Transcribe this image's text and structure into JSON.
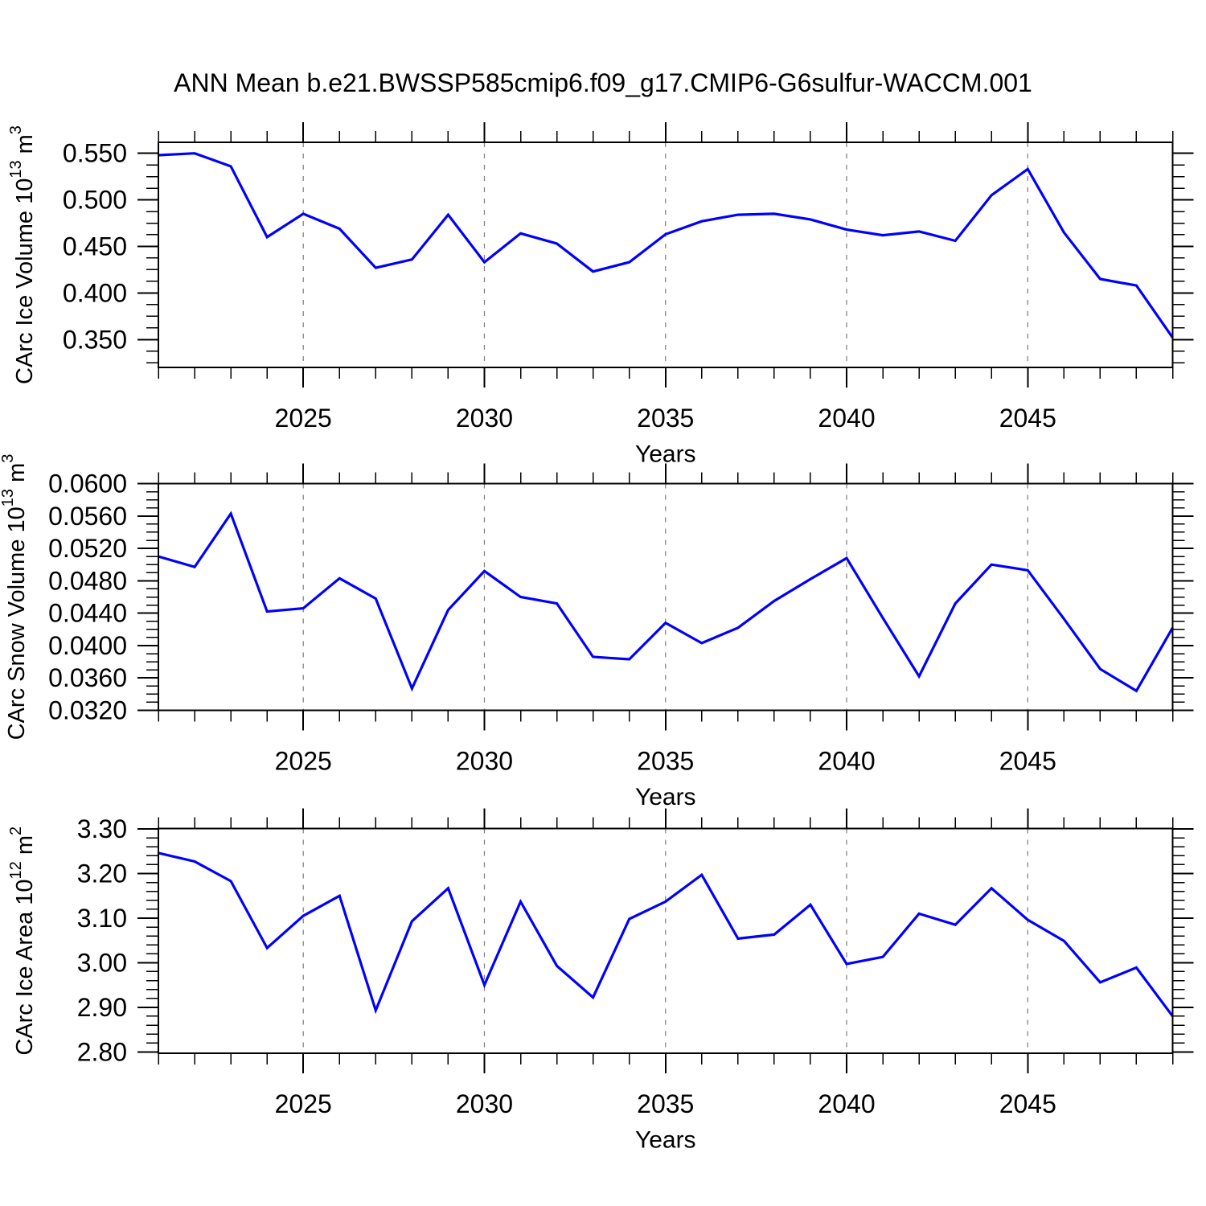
{
  "title": "ANN Mean b.e21.BWSSP585cmip6.f09_g17.CMIP6-G6sulfur-WACCM.001",
  "xlabel": "Years",
  "colors": {
    "line": "#0000ff",
    "grid": "#848484",
    "frame": "#000000",
    "text": "#000000",
    "background": "#ffffff"
  },
  "x_axis": {
    "start": 2021,
    "end": 2049,
    "major_ticks": [
      2025,
      2030,
      2035,
      2040,
      2045
    ],
    "tick_labels": [
      "2025",
      "2030",
      "2035",
      "2040",
      "2045"
    ],
    "minor_step_years": 1,
    "gridlines": "dashed-at-major-ticks"
  },
  "years": [
    2021,
    2022,
    2023,
    2024,
    2025,
    2026,
    2027,
    2028,
    2029,
    2030,
    2031,
    2032,
    2033,
    2034,
    2035,
    2036,
    2037,
    2038,
    2039,
    2040,
    2041,
    2042,
    2043,
    2044,
    2045,
    2046,
    2047,
    2048,
    2049
  ],
  "chart_data": [
    {
      "type": "line",
      "id": "carc-ice-volume",
      "ylabel_text": "CArc Ice Volume 10^13 m^3",
      "ylabel_segments": [
        {
          "text": "CArc Ice Volume 10",
          "sup": false
        },
        {
          "text": "13",
          "sup": true
        },
        {
          "text": " m",
          "sup": false
        },
        {
          "text": "3",
          "sup": true
        }
      ],
      "ylim": [
        0.32,
        0.5618
      ],
      "yticks": [
        0.55,
        0.5,
        0.45,
        0.4,
        0.35
      ],
      "ytick_labels": [
        "0.550",
        "0.500",
        "0.450",
        "0.400",
        "0.350"
      ],
      "y_minor_step": 0.0125,
      "values": [
        0.548,
        0.55,
        0.536,
        0.46,
        0.485,
        0.469,
        0.427,
        0.436,
        0.484,
        0.433,
        0.464,
        0.453,
        0.423,
        0.433,
        0.463,
        0.477,
        0.484,
        0.485,
        0.479,
        0.468,
        0.462,
        0.466,
        0.456,
        0.505,
        0.533,
        0.465,
        0.415,
        0.408,
        0.352
      ]
    },
    {
      "type": "line",
      "id": "carc-snow-volume",
      "ylabel_text": "CArc Snow Volume 10^13 m^3",
      "ylabel_segments": [
        {
          "text": "CArc Snow Volume 10",
          "sup": false
        },
        {
          "text": "13",
          "sup": true
        },
        {
          "text": " m",
          "sup": false
        },
        {
          "text": "3",
          "sup": true
        }
      ],
      "ylim": [
        0.032,
        0.06
      ],
      "yticks": [
        0.06,
        0.056,
        0.052,
        0.048,
        0.044,
        0.04,
        0.036,
        0.032
      ],
      "ytick_labels": [
        "0.0600",
        "0.0560",
        "0.0520",
        "0.0480",
        "0.0440",
        "0.0400",
        "0.0360",
        "0.0320"
      ],
      "y_minor_step": 0.001,
      "values": [
        0.051,
        0.0497,
        0.0563,
        0.0442,
        0.0446,
        0.0483,
        0.0458,
        0.0347,
        0.0444,
        0.0492,
        0.046,
        0.0452,
        0.0386,
        0.0383,
        0.0428,
        0.0403,
        0.0422,
        0.0455,
        0.0482,
        0.0508,
        0.0434,
        0.0362,
        0.0452,
        0.05,
        0.0493,
        0.0433,
        0.0371,
        0.0344,
        0.0422
      ]
    },
    {
      "type": "line",
      "id": "carc-ice-area",
      "ylabel_text": "CArc Ice Area 10^12 m^2",
      "ylabel_segments": [
        {
          "text": "CArc Ice Area 10",
          "sup": false
        },
        {
          "text": "12",
          "sup": true
        },
        {
          "text": " m",
          "sup": false
        },
        {
          "text": "2",
          "sup": true
        }
      ],
      "ylim": [
        2.7969,
        3.3009
      ],
      "yticks": [
        3.3,
        3.2,
        3.1,
        3.0,
        2.9,
        2.8
      ],
      "ytick_labels": [
        "3.30",
        "3.20",
        "3.10",
        "3.00",
        "2.90",
        "2.80"
      ],
      "y_minor_step": 0.02,
      "values": [
        3.246,
        3.227,
        3.183,
        3.033,
        3.105,
        3.15,
        2.893,
        3.093,
        3.167,
        2.95,
        3.137,
        2.993,
        2.922,
        3.098,
        3.137,
        3.197,
        3.054,
        3.063,
        3.13,
        2.997,
        3.013,
        3.11,
        3.085,
        3.167,
        3.096,
        3.049,
        2.956,
        2.989,
        2.88
      ]
    }
  ]
}
